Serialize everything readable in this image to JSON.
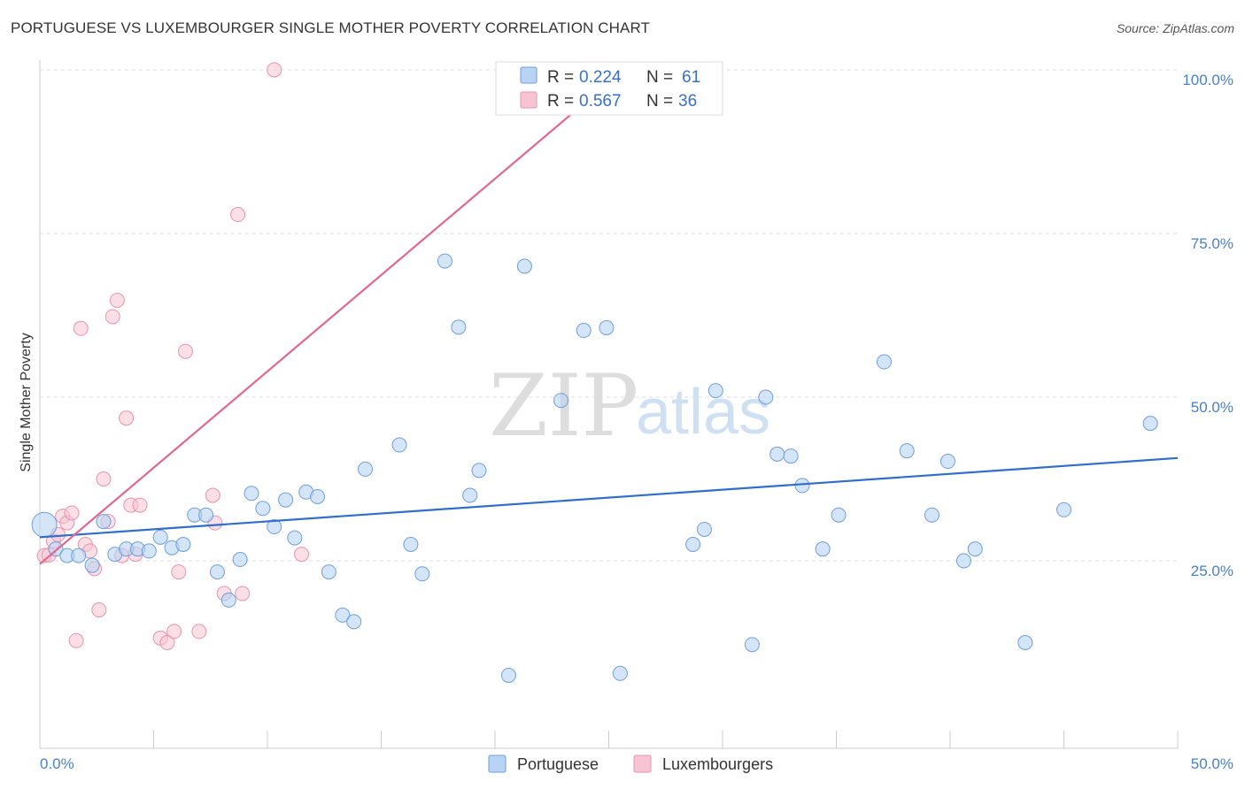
{
  "header": {
    "title": "PORTUGUESE VS LUXEMBOURGER SINGLE MOTHER POVERTY CORRELATION CHART",
    "source": "Source: ZipAtlas.com"
  },
  "watermark": {
    "zip": "ZIP",
    "atlas": "atlas"
  },
  "colors": {
    "portuguese_fill": "#b8d3f3",
    "portuguese_stroke": "#6f9fd8",
    "portuguese_line": "#2f6fcb",
    "luxembourger_fill": "#f7c4d4",
    "luxembourger_stroke": "#e893ad",
    "luxembourger_line": "#e0678f",
    "tick_label": "#4a7fc9"
  },
  "legend": {
    "r_label": "R =",
    "n_label": "N =",
    "entries": [
      {
        "r": "0.224",
        "n": "61"
      },
      {
        "r": "0.567",
        "n": "36"
      }
    ]
  },
  "chart_data": {
    "type": "scatter",
    "xlabel": "",
    "ylabel": "Single Mother Poverty",
    "xlim": [
      0,
      50
    ],
    "ylim": [
      0,
      100
    ],
    "x_tick_labels": [
      "0.0%",
      "50.0%"
    ],
    "y_tick_labels": [
      "25.0%",
      "50.0%",
      "75.0%",
      "100.0%"
    ],
    "y_ticks": [
      25,
      50,
      75,
      100
    ],
    "grid": true,
    "legend_position": "top-center",
    "series": [
      {
        "name": "Portuguese",
        "r": 0.224,
        "n": 61,
        "trend": {
          "x": [
            0,
            50
          ],
          "y": [
            28.6,
            40.7
          ]
        },
        "points": [
          [
            0.2,
            30.5
          ],
          [
            0.7,
            26.8
          ],
          [
            1.2,
            25.8
          ],
          [
            2.3,
            24.3
          ],
          [
            2.8,
            31.0
          ],
          [
            3.3,
            26.0
          ],
          [
            3.8,
            26.8
          ],
          [
            4.3,
            26.8
          ],
          [
            4.8,
            26.5
          ],
          [
            5.3,
            28.6
          ],
          [
            5.8,
            27.0
          ],
          [
            6.3,
            27.5
          ],
          [
            6.8,
            32.0
          ],
          [
            7.3,
            32.0
          ],
          [
            7.8,
            23.3
          ],
          [
            8.3,
            19.0
          ],
          [
            8.8,
            25.2
          ],
          [
            9.3,
            35.3
          ],
          [
            9.8,
            33.0
          ],
          [
            10.3,
            30.2
          ],
          [
            10.8,
            34.3
          ],
          [
            11.2,
            28.5
          ],
          [
            11.7,
            35.5
          ],
          [
            12.2,
            34.8
          ],
          [
            12.7,
            23.3
          ],
          [
            13.3,
            16.7
          ],
          [
            13.8,
            15.7
          ],
          [
            14.3,
            39.0
          ],
          [
            15.8,
            42.7
          ],
          [
            16.3,
            27.5
          ],
          [
            16.8,
            23.0
          ],
          [
            17.8,
            70.8
          ],
          [
            18.4,
            60.7
          ],
          [
            18.9,
            35.0
          ],
          [
            19.3,
            38.8
          ],
          [
            20.6,
            7.5
          ],
          [
            21.3,
            70.0
          ],
          [
            22.9,
            49.5
          ],
          [
            23.9,
            60.2
          ],
          [
            24.9,
            60.6
          ],
          [
            25.5,
            7.8
          ],
          [
            28.7,
            27.5
          ],
          [
            29.2,
            29.8
          ],
          [
            29.7,
            51.0
          ],
          [
            31.3,
            12.2
          ],
          [
            31.9,
            50.0
          ],
          [
            32.4,
            41.3
          ],
          [
            33.0,
            41.0
          ],
          [
            33.5,
            36.5
          ],
          [
            34.4,
            26.8
          ],
          [
            35.1,
            32.0
          ],
          [
            37.1,
            55.4
          ],
          [
            38.1,
            41.8
          ],
          [
            39.2,
            32.0
          ],
          [
            39.9,
            40.2
          ],
          [
            40.6,
            25.0
          ],
          [
            41.1,
            26.8
          ],
          [
            43.3,
            12.5
          ],
          [
            45.0,
            32.8
          ],
          [
            48.8,
            46.0
          ],
          [
            1.7,
            25.8
          ]
        ]
      },
      {
        "name": "Luxembourgers",
        "r": 0.567,
        "n": 36,
        "trend": {
          "x": [
            0,
            24.8
          ],
          "y": [
            24.5,
            97.5
          ]
        },
        "points": [
          [
            0.2,
            25.8
          ],
          [
            0.4,
            25.9
          ],
          [
            0.6,
            28.0
          ],
          [
            0.8,
            29.0
          ],
          [
            1.0,
            31.8
          ],
          [
            1.2,
            30.8
          ],
          [
            1.4,
            32.3
          ],
          [
            1.6,
            12.8
          ],
          [
            1.8,
            60.5
          ],
          [
            2.0,
            27.5
          ],
          [
            2.2,
            26.5
          ],
          [
            2.4,
            23.8
          ],
          [
            2.6,
            17.5
          ],
          [
            2.8,
            37.5
          ],
          [
            3.0,
            31.0
          ],
          [
            3.2,
            62.3
          ],
          [
            3.4,
            64.8
          ],
          [
            3.6,
            25.8
          ],
          [
            3.8,
            46.8
          ],
          [
            4.0,
            33.5
          ],
          [
            4.2,
            26.0
          ],
          [
            4.4,
            33.5
          ],
          [
            5.3,
            13.2
          ],
          [
            5.6,
            12.5
          ],
          [
            5.9,
            14.2
          ],
          [
            6.1,
            23.3
          ],
          [
            6.4,
            57.0
          ],
          [
            7.0,
            14.2
          ],
          [
            7.6,
            35.0
          ],
          [
            7.7,
            30.8
          ],
          [
            8.1,
            20.0
          ],
          [
            8.7,
            77.9
          ],
          [
            8.9,
            20.0
          ],
          [
            10.3,
            100.0
          ],
          [
            11.5,
            26.0
          ],
          [
            23.0,
            100.0
          ]
        ]
      }
    ]
  },
  "bottom_legend": {
    "items": [
      "Portuguese",
      "Luxembourgers"
    ]
  }
}
